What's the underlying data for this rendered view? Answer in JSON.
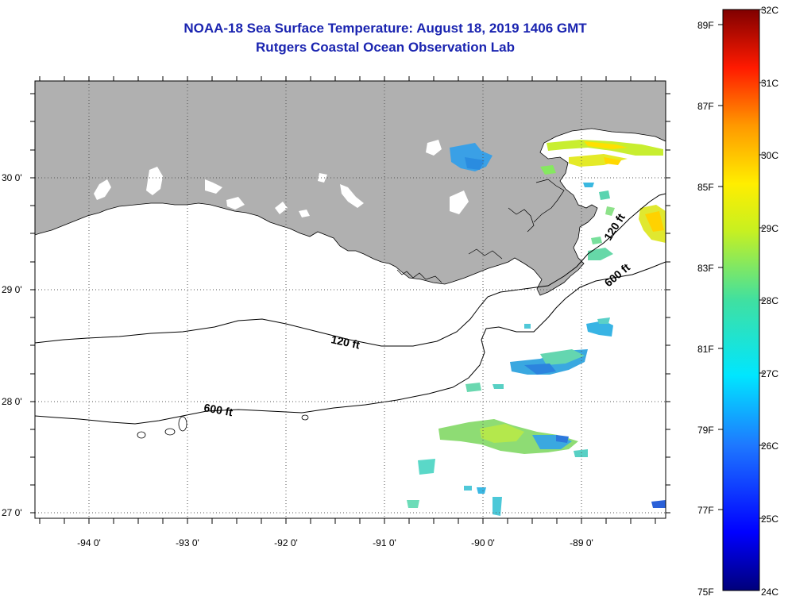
{
  "header": {
    "title_line1": "NOAA-18 Sea Surface Temperature:  August 18, 2019 1406 GMT",
    "title_line2": "Rutgers Coastal Ocean Observation Lab"
  },
  "axes": {
    "lon_labels": [
      "-94 0'",
      "-93 0'",
      "-92 0'",
      "-91 0'",
      "-90 0'",
      "-89 0'"
    ],
    "lat_labels": [
      "30 0'",
      "29 0'",
      "28 0'",
      "27 0'"
    ]
  },
  "contours": {
    "label_120a": "120 ft",
    "label_120b": "120 ft",
    "label_600a": "600 ft",
    "label_600b": "600 ft"
  },
  "colorbar": {
    "fahrenheit": [
      "89F",
      "87F",
      "85F",
      "83F",
      "81F",
      "79F",
      "77F",
      "75F"
    ],
    "celsius": [
      "32C",
      "31C",
      "30C",
      "29C",
      "28C",
      "27C",
      "26C",
      "25C",
      "24C"
    ]
  },
  "colors": {
    "land": "#b0b0b0",
    "title": "#1a24b0"
  }
}
